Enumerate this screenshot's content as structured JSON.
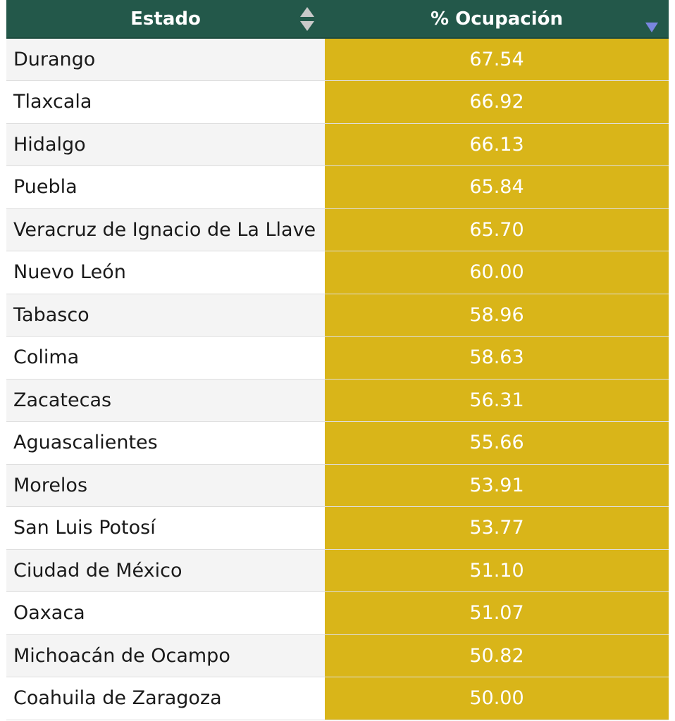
{
  "colors": {
    "header_bg": "#23584a",
    "occupancy_cell_bg": "#d9b519",
    "row_odd_bg": "#f4f4f4",
    "row_even_bg": "#ffffff",
    "sort_active_color": "#7a86e0"
  },
  "table": {
    "columns": [
      {
        "label": "Estado",
        "sort_icon": "sort-both-icon"
      },
      {
        "label": "% Ocupación",
        "sort_icon": "sort-desc-icon"
      }
    ],
    "rows": [
      {
        "estado": "Durango",
        "ocupacion": "67.54"
      },
      {
        "estado": "Tlaxcala",
        "ocupacion": "66.92"
      },
      {
        "estado": "Hidalgo",
        "ocupacion": "66.13"
      },
      {
        "estado": "Puebla",
        "ocupacion": "65.84"
      },
      {
        "estado": "Veracruz de Ignacio de La Llave",
        "ocupacion": "65.70"
      },
      {
        "estado": "Nuevo León",
        "ocupacion": "60.00"
      },
      {
        "estado": "Tabasco",
        "ocupacion": "58.96"
      },
      {
        "estado": "Colima",
        "ocupacion": "58.63"
      },
      {
        "estado": "Zacatecas",
        "ocupacion": "56.31"
      },
      {
        "estado": "Aguascalientes",
        "ocupacion": "55.66"
      },
      {
        "estado": "Morelos",
        "ocupacion": "53.91"
      },
      {
        "estado": "San Luis Potosí",
        "ocupacion": "53.77"
      },
      {
        "estado": "Ciudad de México",
        "ocupacion": "51.10"
      },
      {
        "estado": "Oaxaca",
        "ocupacion": "51.07"
      },
      {
        "estado": "Michoacán de Ocampo",
        "ocupacion": "50.82"
      },
      {
        "estado": "Coahuila de Zaragoza",
        "ocupacion": "50.00"
      }
    ]
  }
}
